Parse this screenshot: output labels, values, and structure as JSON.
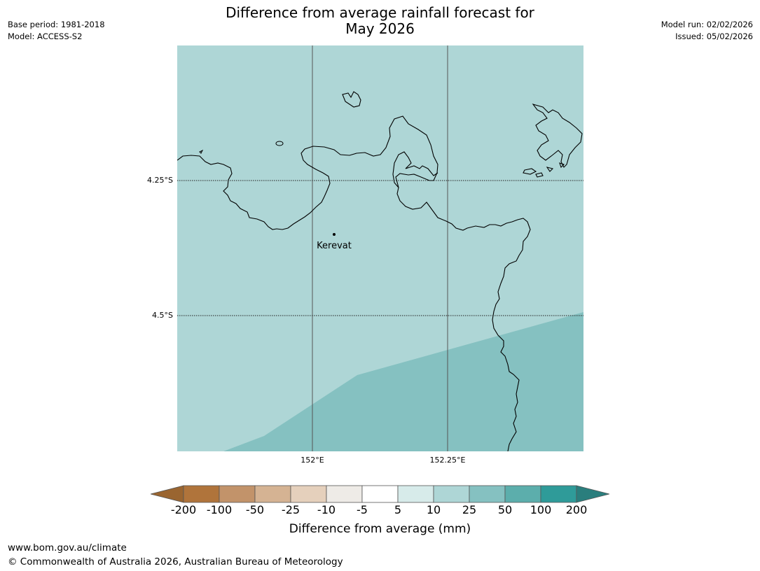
{
  "title": {
    "line1": "Difference from average rainfall forecast for",
    "line2": "May 2026"
  },
  "meta_left": {
    "base_period": "Base period: 1981-2018",
    "model": "Model: ACCESS-S2"
  },
  "meta_right": {
    "model_run": "Model run: 02/02/2026",
    "issued": "Issued: 05/02/2026"
  },
  "map": {
    "place_label": "Kerevat",
    "latitude_labels": [
      "4.25°S",
      "4.5°S"
    ],
    "longitude_labels": [
      "152°E",
      "152.25°E"
    ],
    "fill_colors": {
      "band_5_to_10": "#aed6d6",
      "band_10_to_25": "#85c1c1"
    },
    "coastline_color": "#000000"
  },
  "colorbar": {
    "ticks": [
      "-200",
      "-100",
      "-50",
      "-25",
      "-10",
      "-5",
      "5",
      "10",
      "25",
      "50",
      "100",
      "200"
    ],
    "colors": [
      "#9a6530",
      "#b0743b",
      "#c2936a",
      "#d5b393",
      "#e5d0bc",
      "#eeebe7",
      "#ffffff",
      "#d7ebea",
      "#aed6d6",
      "#85c1c1",
      "#5caeac",
      "#2f9b99",
      "#2a7e7d"
    ],
    "label": "Difference from average (mm)"
  },
  "footer": {
    "url": "www.bom.gov.au/climate",
    "copyright": "© Commonwealth of Australia 2026, Australian Bureau of Meteorology"
  }
}
